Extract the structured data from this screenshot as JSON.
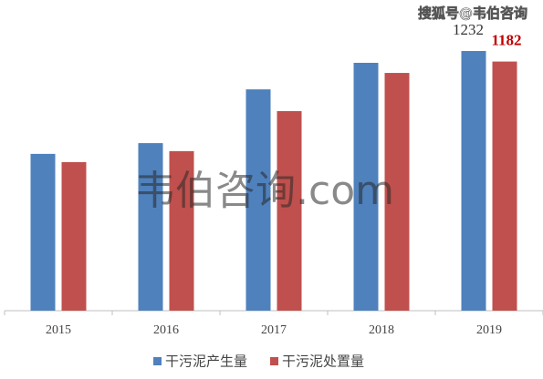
{
  "chart_data": {
    "type": "bar",
    "categories": [
      "2015",
      "2016",
      "2017",
      "2018",
      "2019"
    ],
    "series": [
      {
        "name": "干污泥产生量",
        "color": "#4f81bd",
        "values": [
          744,
          795,
          1050,
          1176,
          1232
        ],
        "value_labels": [
          null,
          null,
          null,
          null,
          "1232"
        ],
        "label_color": "#333333"
      },
      {
        "name": "干污泥处置量",
        "color": "#c0504d",
        "values": [
          705,
          757,
          947,
          1128,
          1182
        ],
        "value_labels": [
          null,
          null,
          null,
          null,
          "1182"
        ],
        "label_color": "#c00000"
      }
    ],
    "watermark": "韦伯咨询.com",
    "source": "搜狐号@韦伯咨询"
  }
}
